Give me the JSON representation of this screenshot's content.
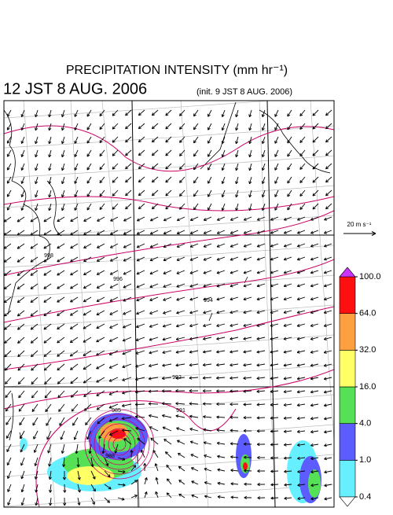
{
  "header": {
    "title": "PRECIPITATION INTENSITY (mm hr⁻¹)",
    "valid_time": "12 JST 8 AUG. 2006",
    "init_time": "(init. 9 JST 8 AUG. 2006)"
  },
  "map": {
    "contour_labels": [
      "998",
      "996",
      "994",
      "992",
      "991",
      "988",
      "985"
    ]
  },
  "reference_vector": {
    "label": "20 m s⁻¹"
  },
  "colorbar": {
    "ticks": [
      {
        "value": 0.4,
        "label": "0.4"
      },
      {
        "value": 1.0,
        "label": "1.0"
      },
      {
        "value": 4.0,
        "label": "4.0"
      },
      {
        "value": 16.0,
        "label": "16.0"
      },
      {
        "value": 32.0,
        "label": "32.0"
      },
      {
        "value": 64.0,
        "label": "64.0"
      },
      {
        "value": 100.0,
        "label": "100.0"
      }
    ],
    "colors": [
      "#66f0ff",
      "#5c5cff",
      "#55e055",
      "#ffff66",
      "#ffa040",
      "#ff1010"
    ],
    "over_color": "#cc33ff",
    "under_color": "#ffffff"
  }
}
